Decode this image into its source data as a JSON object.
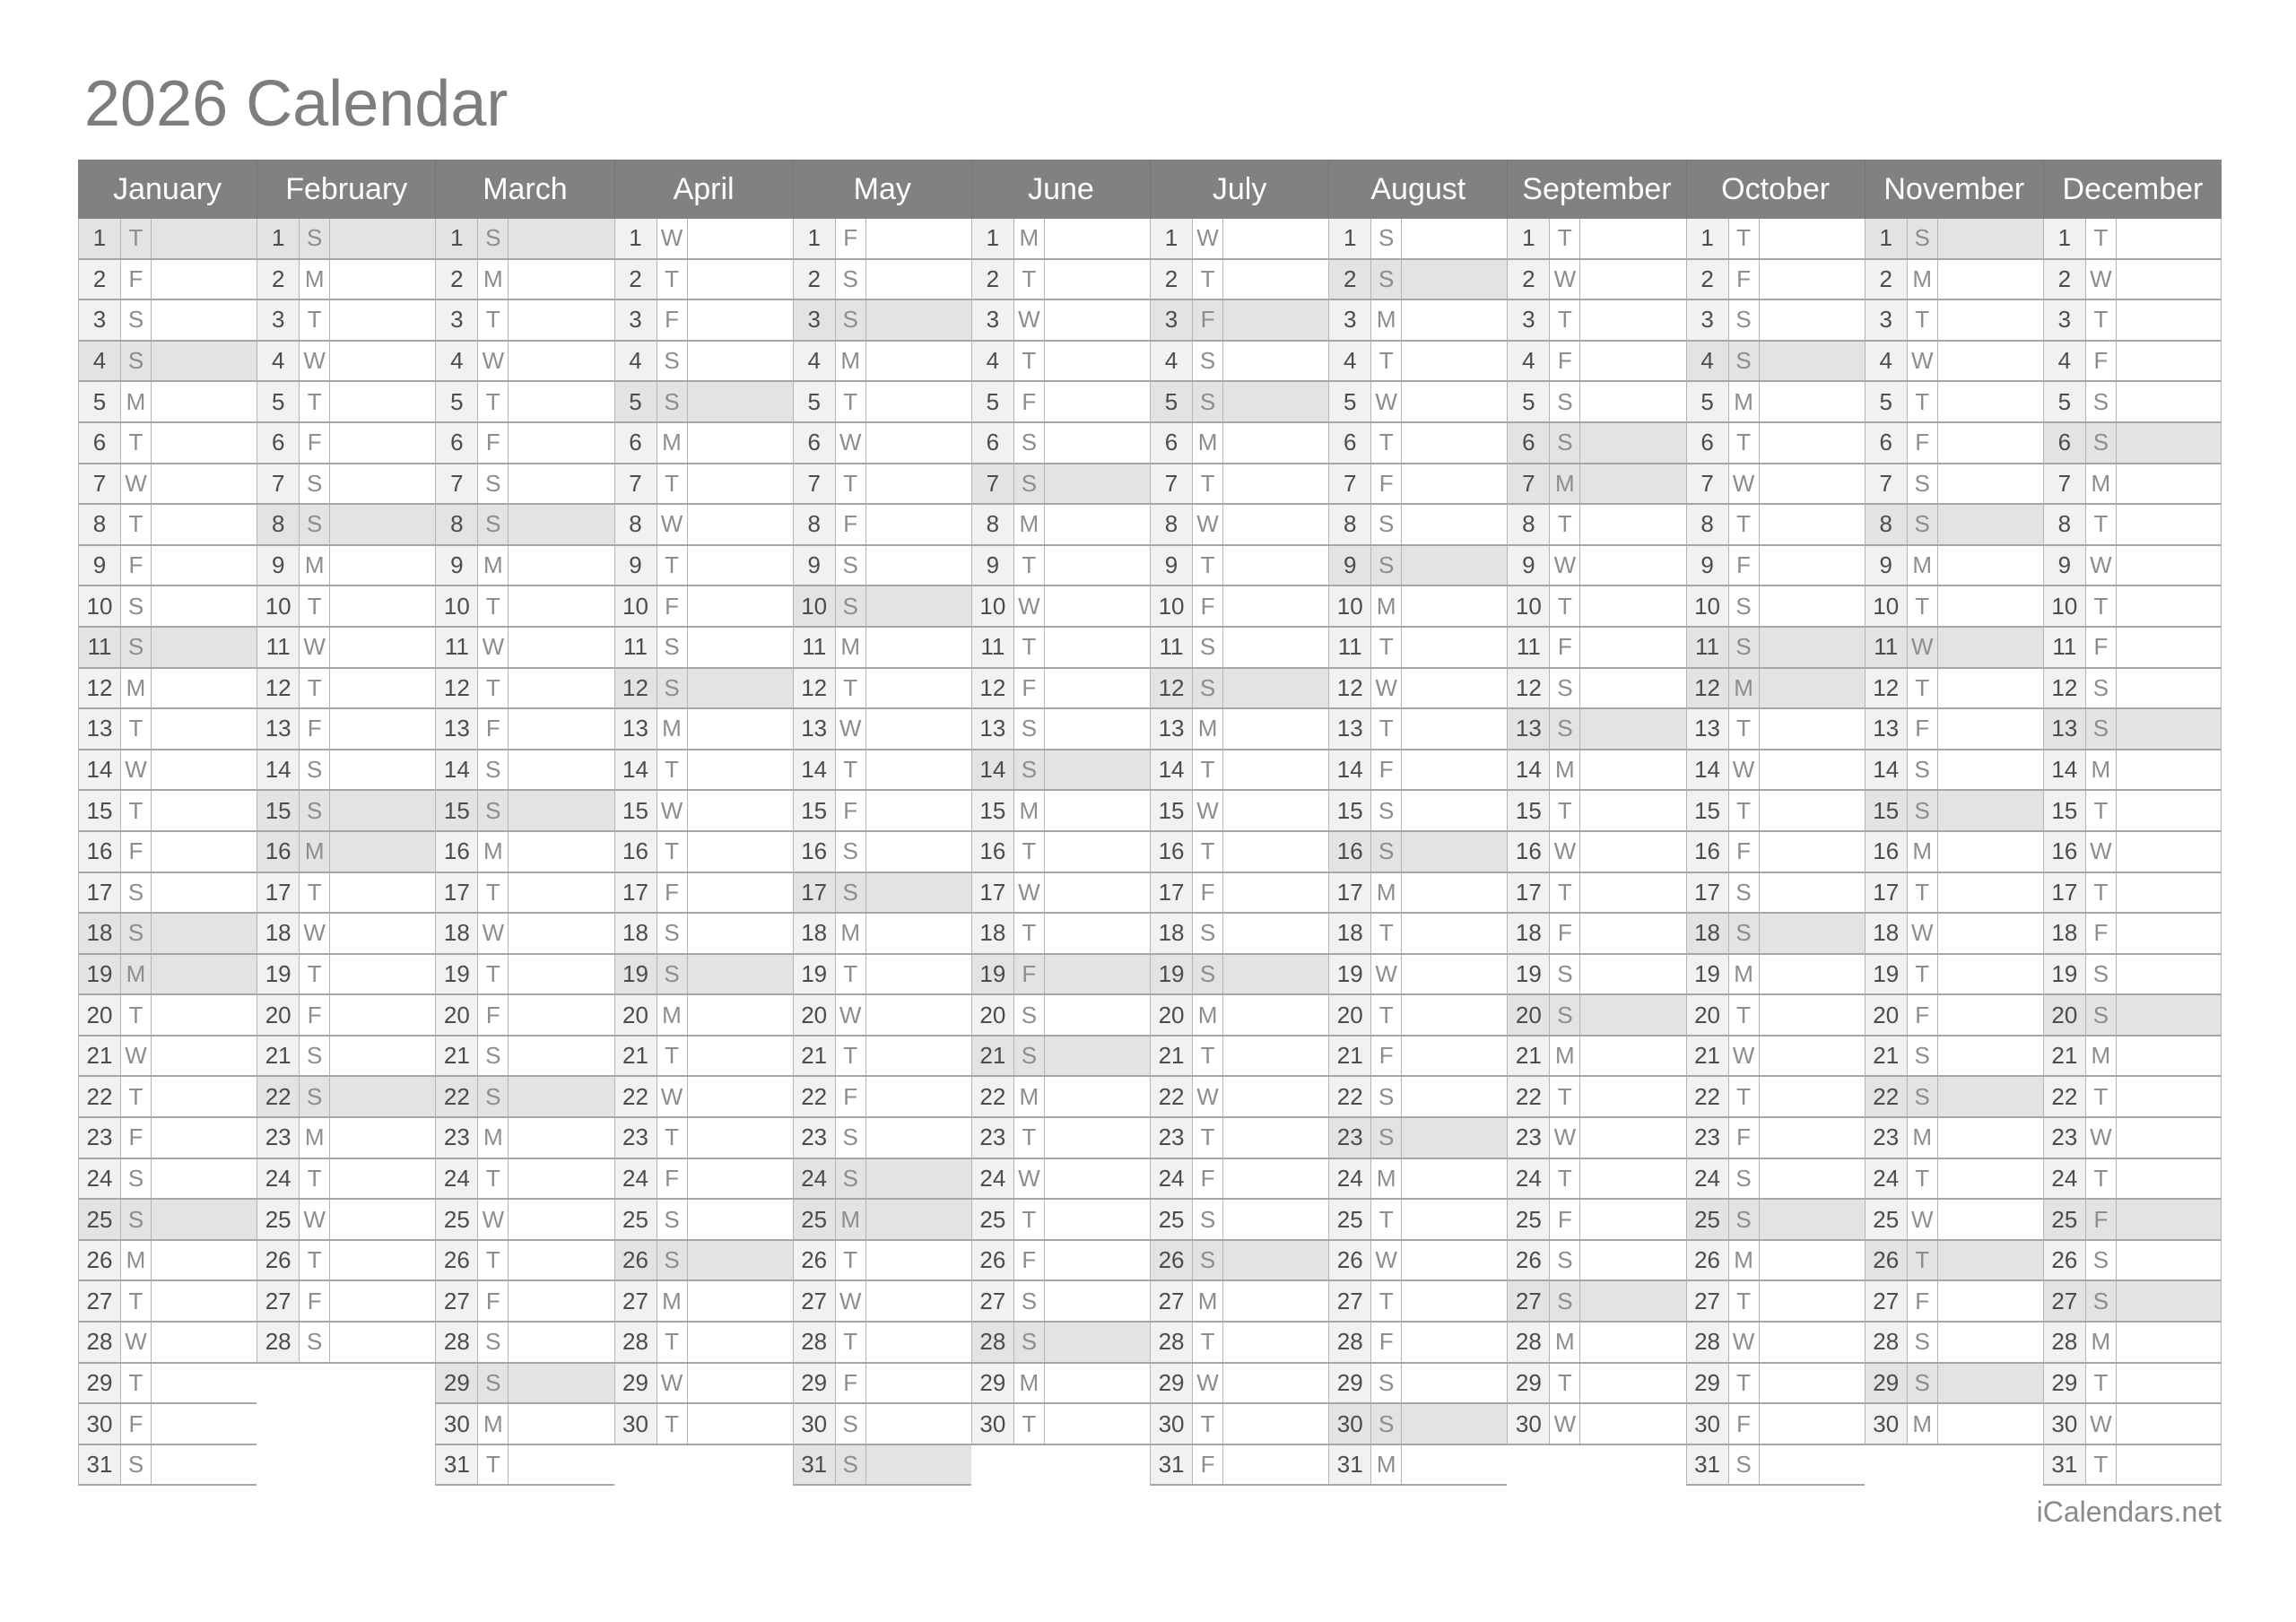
{
  "page": {
    "title": "2026 Calendar",
    "footer": "iCalendars.net"
  },
  "colors": {
    "header_bg": "#818181",
    "header_text": "#ffffff",
    "shaded_row_bg": "#e3e3e3",
    "number_cell_bg": "#f1f1f1",
    "row_bg": "#ffffff",
    "horizontal_border": "#a6a6a6",
    "vertical_border": "#b5b5b5",
    "day_number_text": "#4c4c4c",
    "day_letter_text": "#8d8d8d",
    "title_text": "#7d7d7d",
    "footer_text": "#8a8a8a"
  },
  "months": [
    {
      "name": "January",
      "days": 31,
      "letters": "TFSSMTWTFSSMTWTFSSMTWTFSSMTWTFS",
      "shaded": [
        1,
        4,
        11,
        18,
        19,
        25
      ]
    },
    {
      "name": "February",
      "days": 28,
      "letters": "SMTWTFSSMTWTFSSMTWTFSSMTWTFS",
      "shaded": [
        1,
        8,
        15,
        16,
        22
      ]
    },
    {
      "name": "March",
      "days": 31,
      "letters": "SMTWTFSSMTWTFSSMTWTFSSMTWTFSSMT",
      "shaded": [
        1,
        8,
        15,
        22,
        29
      ]
    },
    {
      "name": "April",
      "days": 30,
      "letters": "WTFSSMTWTFSSMTWTFSSMTWTFSSMTWT",
      "shaded": [
        5,
        12,
        19,
        26
      ]
    },
    {
      "name": "May",
      "days": 31,
      "letters": "FSSMTWTFSSMTWTFSSMTWTFSSMTWTFSS",
      "shaded": [
        3,
        10,
        17,
        24,
        25,
        31
      ]
    },
    {
      "name": "June",
      "days": 30,
      "letters": "MTWTFSSMTWTFSSMTWTFSSMTWTFSSMT",
      "shaded": [
        7,
        14,
        19,
        21,
        28
      ]
    },
    {
      "name": "July",
      "days": 31,
      "letters": "WTFSSMTWTFSSMTWTFSSMTWTFSSMTWTF",
      "shaded": [
        3,
        5,
        12,
        19,
        26
      ]
    },
    {
      "name": "August",
      "days": 31,
      "letters": "SSMTWTFSSMTWTFSSMTWTFSSMTWTFSSM",
      "shaded": [
        2,
        9,
        16,
        23,
        30
      ]
    },
    {
      "name": "September",
      "days": 30,
      "letters": "TWTFSSMTWTFSSMTWTFSSMTWTFSSMTW",
      "shaded": [
        6,
        7,
        13,
        20,
        27
      ]
    },
    {
      "name": "October",
      "days": 31,
      "letters": "TFSSMTWTFSSMTWTFSSMTWTFSSMTWTFS",
      "shaded": [
        4,
        11,
        12,
        18,
        25
      ]
    },
    {
      "name": "November",
      "days": 30,
      "letters": "SMTWTFSSMTWTFSSMTWTFSSMTWTFSSM",
      "shaded": [
        1,
        8,
        11,
        15,
        22,
        26,
        29
      ]
    },
    {
      "name": "December",
      "days": 31,
      "letters": "TWTFSSMTWTFSSMTWTFSSMTWTFSSMTWT",
      "shaded": [
        6,
        13,
        20,
        25,
        27
      ]
    }
  ]
}
